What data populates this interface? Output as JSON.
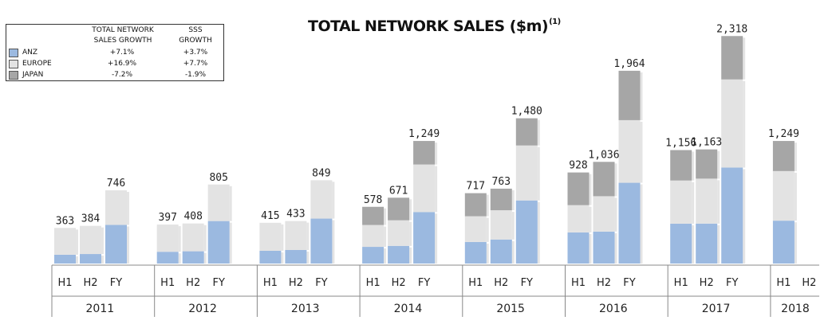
{
  "chart_data": {
    "type": "bar",
    "stacked": true,
    "title": "TOTAL NETWORK SALES ($m)",
    "title_footnote": "(1)",
    "categories": [
      {
        "year": "2011",
        "period": "H1"
      },
      {
        "year": "2011",
        "period": "H2"
      },
      {
        "year": "2011",
        "period": "FY"
      },
      {
        "year": "2012",
        "period": "H1"
      },
      {
        "year": "2012",
        "period": "H2"
      },
      {
        "year": "2012",
        "period": "FY"
      },
      {
        "year": "2013",
        "period": "H1"
      },
      {
        "year": "2013",
        "period": "H2"
      },
      {
        "year": "2013",
        "period": "FY"
      },
      {
        "year": "2014",
        "period": "H1"
      },
      {
        "year": "2014",
        "period": "H2"
      },
      {
        "year": "2014",
        "period": "FY"
      },
      {
        "year": "2015",
        "period": "H1"
      },
      {
        "year": "2015",
        "period": "H2"
      },
      {
        "year": "2015",
        "period": "FY"
      },
      {
        "year": "2016",
        "period": "H1"
      },
      {
        "year": "2016",
        "period": "H2"
      },
      {
        "year": "2016",
        "period": "FY"
      },
      {
        "year": "2017",
        "period": "H1"
      },
      {
        "year": "2017",
        "period": "H2"
      },
      {
        "year": "2017",
        "period": "FY"
      },
      {
        "year": "2018",
        "period": "H1"
      },
      {
        "year": "2018",
        "period": "H2"
      }
    ],
    "years": [
      "2011",
      "2012",
      "2013",
      "2014",
      "2015",
      "2016",
      "2017",
      "2018"
    ],
    "totals": [
      363,
      384,
      746,
      397,
      408,
      805,
      415,
      433,
      849,
      578,
      671,
      1249,
      717,
      763,
      1480,
      928,
      1036,
      1964,
      1156,
      1163,
      2318,
      1249,
      null
    ],
    "total_labels": [
      "363",
      "384",
      "746",
      "397",
      "408",
      "805",
      "415",
      "433",
      "849",
      "578",
      "671",
      "1,249",
      "717",
      "763",
      "1,480",
      "928",
      "1,036",
      "1,964",
      "1,156",
      "1,163",
      "2,318",
      "1,249",
      ""
    ],
    "series": [
      {
        "name": "ANZ",
        "color": "#9bb9e0",
        "values": [
          90,
          97,
          394,
          120,
          125,
          433,
          130,
          138,
          458,
          170,
          180,
          525,
          220,
          245,
          643,
          317,
          326,
          823,
          406,
          407,
          978,
          437,
          null
        ]
      },
      {
        "name": "EUROPE",
        "color": "#e3e3e3",
        "values": [
          273,
          287,
          352,
          277,
          283,
          372,
          285,
          295,
          391,
          223,
          261,
          484,
          262,
          298,
          560,
          278,
          360,
          638,
          440,
          458,
          898,
          505,
          null
        ]
      },
      {
        "name": "JAPAN",
        "color": "#a6a6a6",
        "values": [
          0,
          0,
          0,
          0,
          0,
          0,
          0,
          0,
          0,
          185,
          230,
          240,
          235,
          220,
          277,
          333,
          350,
          503,
          310,
          298,
          442,
          307,
          null
        ]
      }
    ],
    "ylim": [
      0,
      2450
    ],
    "grid": false,
    "legend": {
      "placement": "top-left",
      "header_col1_line1": "TOTAL NETWORK",
      "header_col1_line2": "SALES GROWTH",
      "header_col2_line1": "SSS",
      "header_col2_line2": "GROWTH",
      "rows": [
        {
          "name": "ANZ",
          "sales_growth": "+7.1%",
          "sss_growth": "+3.7%",
          "color": "#9bb9e0"
        },
        {
          "name": "EUROPE",
          "sales_growth": "+16.9%",
          "sss_growth": "+7.7%",
          "color": "#e3e3e3"
        },
        {
          "name": "JAPAN",
          "sales_growth": "-7.2%",
          "sss_growth": "-1.9%",
          "color": "#a6a6a6"
        }
      ]
    }
  }
}
